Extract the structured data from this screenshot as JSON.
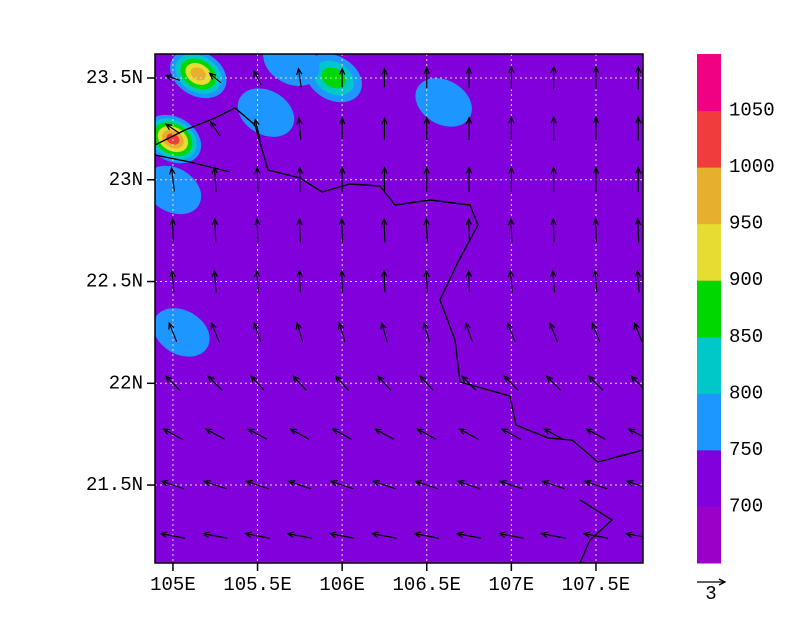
{
  "chart_data": {
    "type": "contour-vector",
    "xlim": [
      104.894,
      107.778
    ],
    "ylim": [
      21.117,
      23.618
    ],
    "xticks": [
      {
        "value": 105,
        "label": "105E"
      },
      {
        "value": 105.5,
        "label": "105.5E"
      },
      {
        "value": 106,
        "label": "106E"
      },
      {
        "value": 106.5,
        "label": "106.5E"
      },
      {
        "value": 107,
        "label": "107E"
      },
      {
        "value": 107.5,
        "label": "107.5E"
      }
    ],
    "yticks": [
      {
        "value": 21.5,
        "label": "21.5N"
      },
      {
        "value": 22,
        "label": "22N"
      },
      {
        "value": 22.5,
        "label": "22.5N"
      },
      {
        "value": 23,
        "label": "23N"
      },
      {
        "value": 23.5,
        "label": "23.5N"
      }
    ],
    "grid": true,
    "levels": [
      700,
      750,
      800,
      850,
      900,
      950,
      1000,
      1050
    ],
    "colors": [
      "#9a00c8",
      "#8200dc",
      "#1e96ff",
      "#00c8c8",
      "#00d700",
      "#e6dc32",
      "#e6af2d",
      "#f03c3c",
      "#f00082"
    ],
    "patches": [
      {
        "lon": 105.0,
        "lat": 23.2,
        "value": 1020
      },
      {
        "lon": 105.15,
        "lat": 23.52,
        "value": 960
      },
      {
        "lon": 105.55,
        "lat": 23.33,
        "value": 790
      },
      {
        "lon": 105.95,
        "lat": 23.5,
        "value": 880
      },
      {
        "lon": 106.6,
        "lat": 23.38,
        "value": 770
      },
      {
        "lon": 105.0,
        "lat": 22.95,
        "value": 770
      },
      {
        "lon": 105.05,
        "lat": 22.25,
        "value": 770
      },
      {
        "lon": 105.7,
        "lat": 23.58,
        "value": 780
      }
    ],
    "wind": {
      "lons": [
        105.0,
        105.25,
        105.5,
        105.75,
        106.0,
        106.25,
        106.5,
        106.75,
        107.0,
        107.25,
        107.5,
        107.75
      ],
      "lats": [
        23.5,
        23.25,
        23.0,
        22.75,
        22.5,
        22.25,
        22.0,
        21.75,
        21.5,
        21.25
      ],
      "u": [
        [
          -1.5,
          -1.2,
          -0.8,
          -0.3,
          0,
          0,
          0,
          0,
          0,
          0,
          0,
          0
        ],
        [
          -1.5,
          -1.0,
          -0.5,
          -0.2,
          0,
          0,
          0,
          0,
          0,
          0,
          0,
          0
        ],
        [
          -0.3,
          -0.2,
          -0.1,
          0,
          0,
          0,
          0,
          0,
          0,
          0,
          0,
          0
        ],
        [
          -0.1,
          -0.1,
          -0.1,
          -0.1,
          -0.1,
          -0.1,
          -0.1,
          -0.1,
          -0.1,
          -0.1,
          -0.1,
          -0.1
        ],
        [
          -0.2,
          -0.2,
          -0.2,
          -0.1,
          -0.1,
          -0.1,
          -0.1,
          -0.1,
          -0.2,
          -0.2,
          -0.2,
          -0.2
        ],
        [
          -0.8,
          -0.8,
          -0.7,
          -0.6,
          -0.6,
          -0.6,
          -0.6,
          -0.7,
          -0.8,
          -0.8,
          -0.8,
          -0.8
        ],
        [
          -1.5,
          -1.5,
          -1.4,
          -1.4,
          -1.4,
          -1.4,
          -1.4,
          -1.5,
          -1.5,
          -1.5,
          -1.5,
          -1.5
        ],
        [
          -2.0,
          -2.0,
          -2.0,
          -2.0,
          -2.0,
          -2.0,
          -2.0,
          -2.0,
          -2.0,
          -2.0,
          -2.0,
          -2.0
        ],
        [
          -2.4,
          -2.4,
          -2.4,
          -2.4,
          -2.4,
          -2.4,
          -2.4,
          -2.4,
          -2.4,
          -2.4,
          -2.4,
          -2.4
        ],
        [
          -2.6,
          -2.6,
          -2.6,
          -2.6,
          -2.6,
          -2.6,
          -2.6,
          -2.6,
          -2.6,
          -2.6,
          -2.6,
          -2.6
        ]
      ],
      "v": [
        [
          0.5,
          1.0,
          1.5,
          2.0,
          2.0,
          2.0,
          2.2,
          2.2,
          2.4,
          2.4,
          2.4,
          2.4
        ],
        [
          1.0,
          1.5,
          2.0,
          2.3,
          2.3,
          2.3,
          2.4,
          2.4,
          2.5,
          2.5,
          2.5,
          2.5
        ],
        [
          2.5,
          2.6,
          2.6,
          2.6,
          2.6,
          2.6,
          2.6,
          2.6,
          2.6,
          2.6,
          2.6,
          2.6
        ],
        [
          2.5,
          2.5,
          2.5,
          2.5,
          2.5,
          2.5,
          2.5,
          2.5,
          2.5,
          2.5,
          2.5,
          2.5
        ],
        [
          2.3,
          2.3,
          2.3,
          2.3,
          2.3,
          2.3,
          2.3,
          2.3,
          2.3,
          2.3,
          2.3,
          2.3
        ],
        [
          2.0,
          2.0,
          2.0,
          2.0,
          2.0,
          2.0,
          2.0,
          2.0,
          2.0,
          2.0,
          2.0,
          2.0
        ],
        [
          1.5,
          1.5,
          1.5,
          1.5,
          1.5,
          1.5,
          1.5,
          1.5,
          1.5,
          1.5,
          1.5,
          1.5
        ],
        [
          1.1,
          1.1,
          1.1,
          1.1,
          1.1,
          1.1,
          1.1,
          1.1,
          1.1,
          1.1,
          1.1,
          1.1
        ],
        [
          0.8,
          0.8,
          0.8,
          0.8,
          0.8,
          0.8,
          0.8,
          0.8,
          0.8,
          0.8,
          0.8,
          0.8
        ],
        [
          0.5,
          0.5,
          0.5,
          0.5,
          0.5,
          0.5,
          0.5,
          0.5,
          0.5,
          0.5,
          0.5,
          0.5
        ]
      ]
    },
    "reference_vector": 3
  }
}
